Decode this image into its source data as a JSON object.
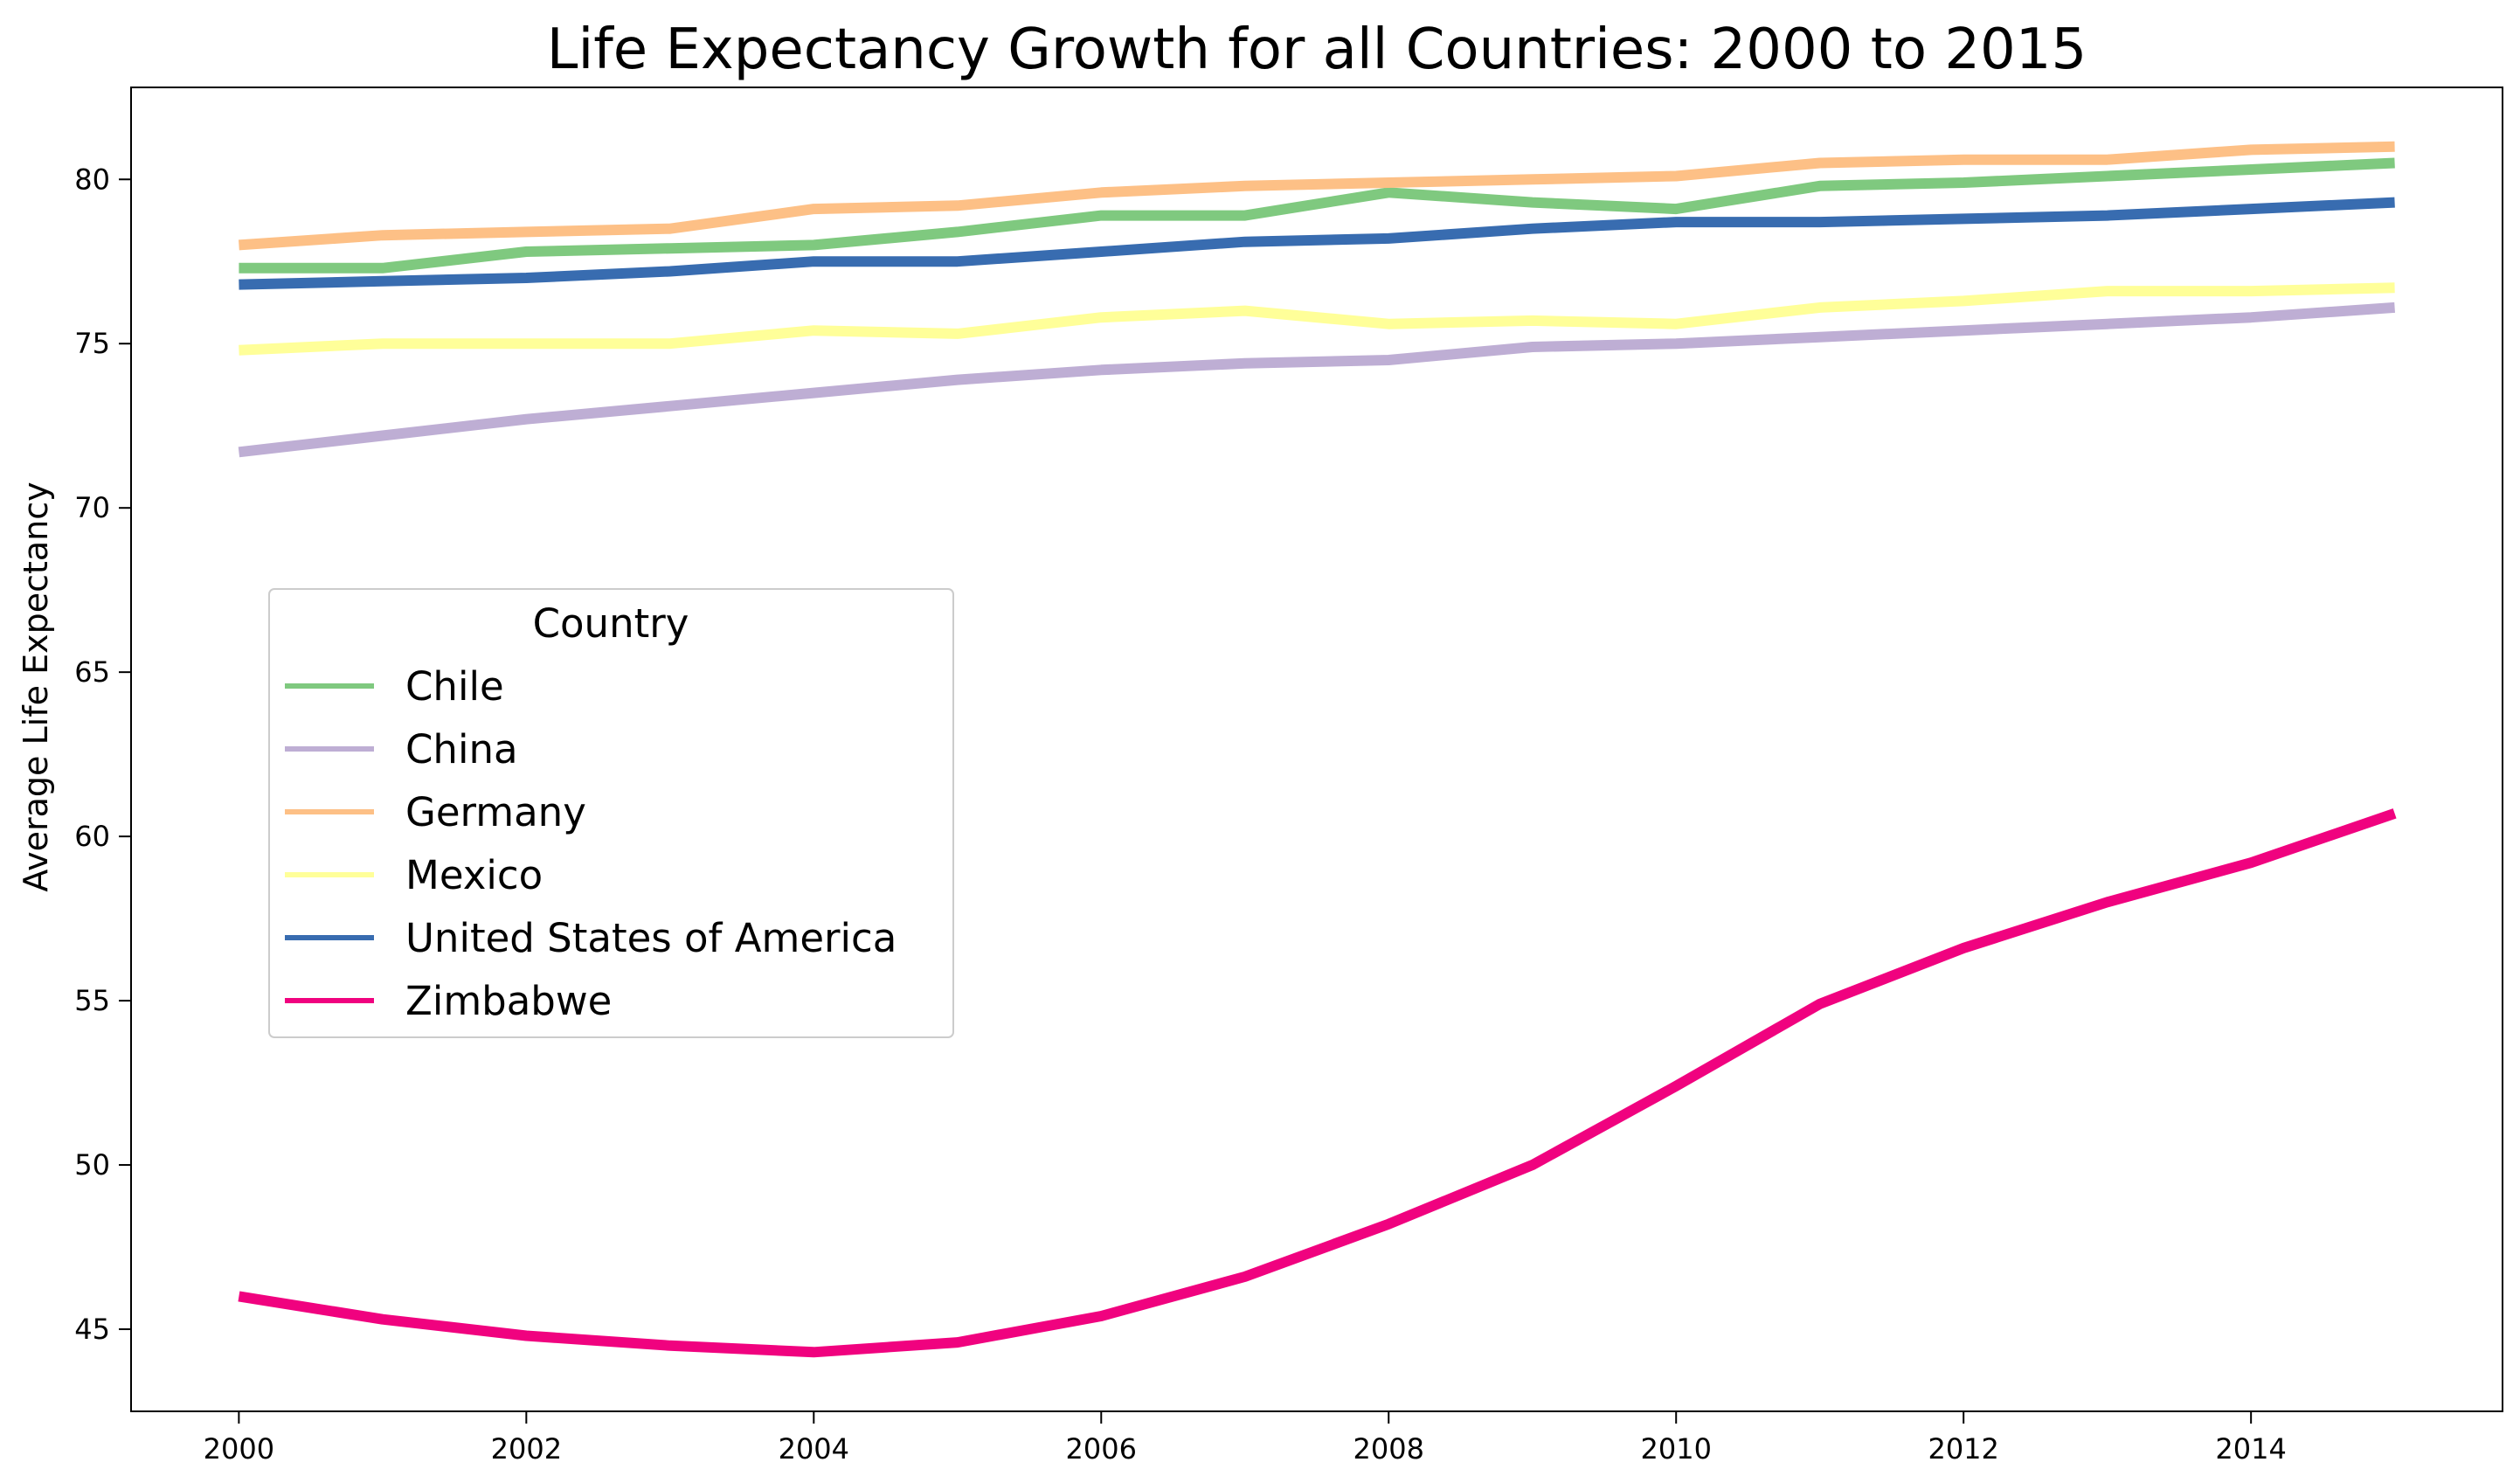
{
  "chart_data": {
    "type": "line",
    "title": "Life Expectancy Growth for all Countries: 2000 to 2015",
    "xlabel": "",
    "ylabel": "Average Life Expectancy",
    "x": [
      2000,
      2001,
      2002,
      2003,
      2004,
      2005,
      2006,
      2007,
      2008,
      2009,
      2010,
      2011,
      2012,
      2013,
      2014,
      2015
    ],
    "xlim": [
      1999.25,
      2015.75
    ],
    "ylim": [
      42.5,
      82.8
    ],
    "xticks": [
      "2000",
      "2002",
      "2004",
      "2006",
      "2008",
      "2010",
      "2012",
      "2014"
    ],
    "yticks": [
      "45",
      "50",
      "55",
      "60",
      "65",
      "70",
      "75",
      "80"
    ],
    "grid": false,
    "legend": {
      "title": "Country",
      "placement": "center-left"
    },
    "series": [
      {
        "name": "Chile",
        "color": "#7fc97f",
        "values": [
          77.3,
          77.3,
          77.8,
          77.9,
          78.0,
          78.4,
          78.9,
          78.9,
          79.6,
          79.3,
          79.1,
          79.8,
          79.9,
          80.1,
          80.3,
          80.5
        ]
      },
      {
        "name": "China",
        "color": "#beaed4",
        "values": [
          71.7,
          72.2,
          72.7,
          73.1,
          73.5,
          73.9,
          74.2,
          74.4,
          74.5,
          74.9,
          75.0,
          75.2,
          75.4,
          75.6,
          75.8,
          76.1
        ]
      },
      {
        "name": "Germany",
        "color": "#fdc086",
        "values": [
          78.0,
          78.3,
          78.4,
          78.5,
          79.1,
          79.2,
          79.6,
          79.8,
          79.9,
          80.0,
          80.1,
          80.5,
          80.6,
          80.6,
          80.9,
          81.0
        ]
      },
      {
        "name": "Mexico",
        "color": "#ffff99",
        "values": [
          74.8,
          75.0,
          75.0,
          75.0,
          75.4,
          75.3,
          75.8,
          76.0,
          75.6,
          75.7,
          75.6,
          76.1,
          76.3,
          76.6,
          76.6,
          76.7
        ]
      },
      {
        "name": "United States of America",
        "color": "#386cb0",
        "values": [
          76.8,
          76.9,
          77.0,
          77.2,
          77.5,
          77.5,
          77.8,
          78.1,
          78.2,
          78.5,
          78.7,
          78.7,
          78.8,
          78.9,
          79.1,
          79.3
        ]
      },
      {
        "name": "Zimbabwe",
        "color": "#f0027f",
        "values": [
          46.0,
          45.3,
          44.8,
          44.5,
          44.3,
          44.6,
          45.4,
          46.6,
          48.2,
          50.0,
          52.4,
          54.9,
          56.6,
          58.0,
          59.2,
          60.7
        ]
      }
    ]
  }
}
